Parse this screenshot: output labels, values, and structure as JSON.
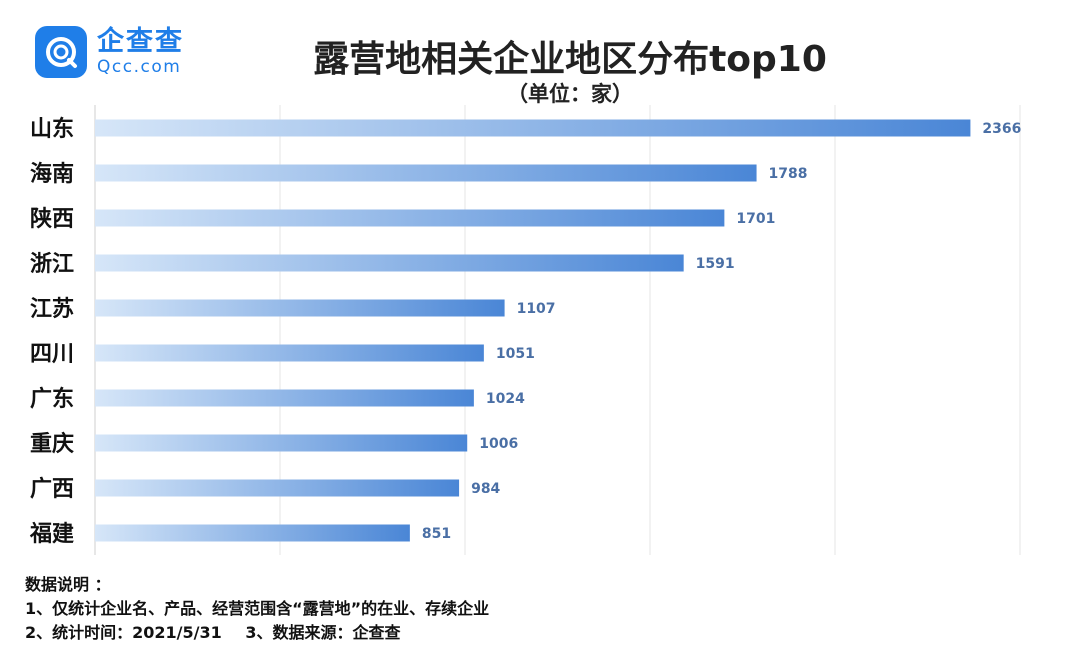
{
  "logo": {
    "name": "企查查",
    "domain": "Qcc.com"
  },
  "chart_data": {
    "type": "bar",
    "orientation": "horizontal",
    "title": "露营地相关企业地区分布top10",
    "subtitle": "（单位：家）",
    "categories": [
      "山东",
      "海南",
      "陕西",
      "浙江",
      "江苏",
      "四川",
      "广东",
      "重庆",
      "广西",
      "福建"
    ],
    "values": [
      2366,
      1788,
      1701,
      1591,
      1107,
      1051,
      1024,
      1006,
      984,
      851
    ],
    "xlim": [
      0,
      2500
    ],
    "grid": true,
    "colors": {
      "bar_start": "#d6e6f8",
      "bar_end": "#4a86d6",
      "value_label": "#4a6fa5",
      "grid": "#e6e6e6"
    }
  },
  "notes": {
    "heading": "数据说明 ：",
    "item1": "1、仅统计企业名、产品、经营范围含“露营地”的在业、存续企业",
    "item2": "2、统计时间：2021/5/31",
    "item3": "3、数据来源：企查查"
  }
}
